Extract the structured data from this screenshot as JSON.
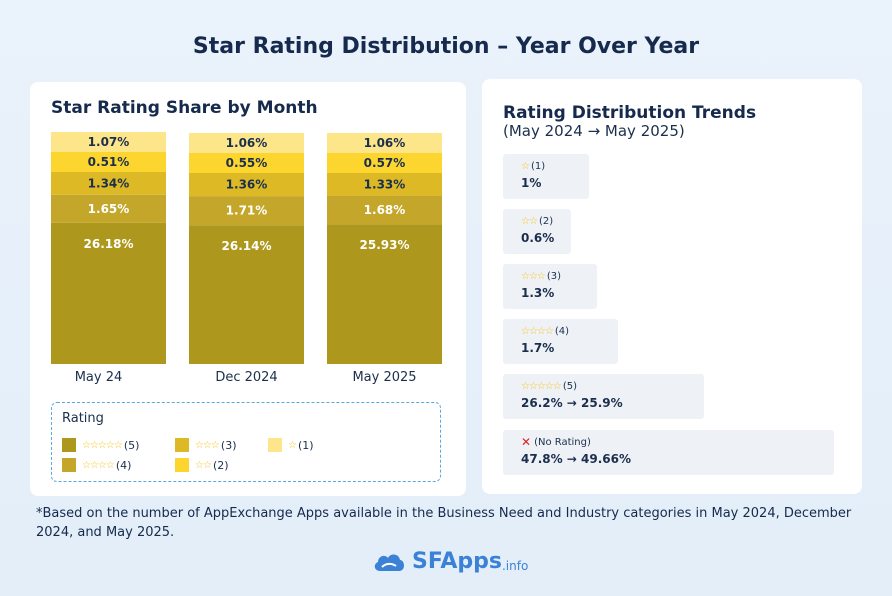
{
  "title": "Star Rating Distribution – Year Over Year",
  "left_card": {
    "title": "Star Rating Share by Month",
    "legend": {
      "title": "Rating",
      "items": [
        {
          "stars": "☆☆☆☆☆",
          "text": "(5)",
          "color": "#ad971c"
        },
        {
          "stars": "☆☆☆☆",
          "text": "(4)",
          "color": "#c3a62a"
        },
        {
          "stars": "☆☆☆",
          "text": "(3)",
          "color": "#dcb925"
        },
        {
          "stars": "☆☆",
          "text": "(2)",
          "color": "#fcd62e"
        },
        {
          "stars": "☆",
          "text": "(1)",
          "color": "#fde68a"
        }
      ]
    }
  },
  "chart_data": {
    "type": "bar",
    "stacked": true,
    "title": "Star Rating Share by Month",
    "categories": [
      "May 24",
      "Dec 2024",
      "May 2025"
    ],
    "series": [
      {
        "name": "(5)",
        "color": "#ad971c",
        "values": [
          26.18,
          26.14,
          25.93
        ],
        "labels": [
          "26.18%",
          "26.14%",
          "25.93%"
        ]
      },
      {
        "name": "(4)",
        "color": "#c3a62a",
        "values": [
          1.65,
          1.71,
          1.68
        ],
        "labels": [
          "1.65%",
          "1.71%",
          "1.68%"
        ]
      },
      {
        "name": "(3)",
        "color": "#dcb925",
        "values": [
          1.34,
          1.36,
          1.33
        ],
        "labels": [
          "1.34%",
          "1.36%",
          "1.33%"
        ]
      },
      {
        "name": "(2)",
        "color": "#fcd62e",
        "values": [
          0.51,
          0.55,
          0.57
        ],
        "labels": [
          "0.51%",
          "0.55%",
          "0.57%"
        ]
      },
      {
        "name": "(1)",
        "color": "#fde68a",
        "values": [
          1.07,
          1.06,
          1.06
        ],
        "labels": [
          "1.07%",
          "1.06%",
          "1.06%"
        ]
      }
    ]
  },
  "right_card": {
    "title": "Rating Distribution Trends",
    "subtitle": "(May 2024 → May 2025)",
    "items": [
      {
        "stars": "☆",
        "label": "(1)",
        "value": "1%"
      },
      {
        "stars": "☆☆",
        "label": "(2)",
        "value": "0.6%"
      },
      {
        "stars": "☆☆☆",
        "label": "(3)",
        "value": "1.3%"
      },
      {
        "stars": "☆☆☆☆",
        "label": " (4)",
        "value": "1.7%"
      },
      {
        "stars": "☆☆☆☆☆",
        "label": " (5)",
        "value": "26.2% → 25.9%"
      },
      {
        "stars": "",
        "label": "(No Rating)",
        "value": "47.8% → 49.66%"
      }
    ]
  },
  "footnote": "*Based on the number of AppExchange Apps available in the Business Need and Industry categories in May 2024, December 2024, and May 2025.",
  "brand": {
    "name": "SFApps",
    "suffix": ".info"
  }
}
